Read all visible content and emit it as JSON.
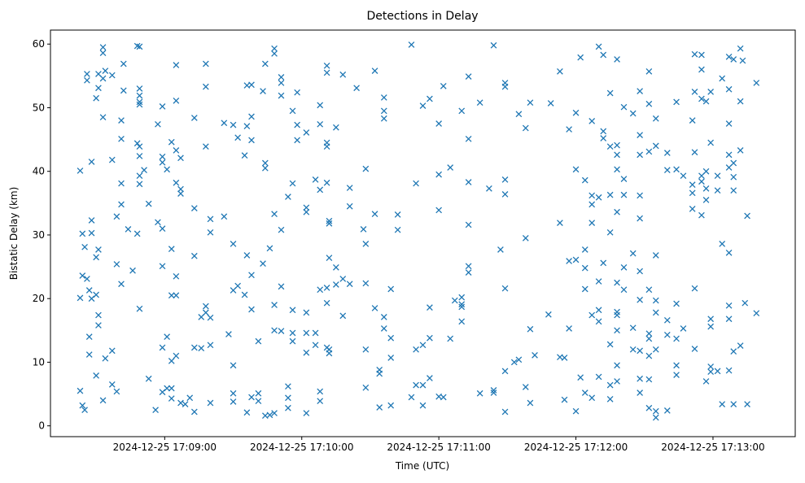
{
  "chart_data": {
    "type": "scatter",
    "title": "Detections in Delay",
    "xlabel": "Time (UTC)",
    "ylabel": "Bistatic Delay (km)",
    "x_unit": "seconds after 2024-12-25 17:08:00",
    "xlim": [
      10,
      336
    ],
    "ylim": [
      -1.7,
      62.2
    ],
    "x_ticks": [
      {
        "value": 60,
        "label": "2024-12-25 17:09:00"
      },
      {
        "value": 120,
        "label": "2024-12-25 17:10:00"
      },
      {
        "value": 180,
        "label": "2024-12-25 17:11:00"
      },
      {
        "value": 240,
        "label": "2024-12-25 17:12:00"
      },
      {
        "value": 300,
        "label": "2024-12-25 17:13:00"
      }
    ],
    "y_ticks": [
      {
        "value": 0,
        "label": "0"
      },
      {
        "value": 10,
        "label": "10"
      },
      {
        "value": 20,
        "label": "20"
      },
      {
        "value": 30,
        "label": "30"
      },
      {
        "value": 40,
        "label": "40"
      },
      {
        "value": 50,
        "label": "50"
      },
      {
        "value": 60,
        "label": "60"
      }
    ],
    "grid": false,
    "marker": "x",
    "color": "#1f77b4",
    "points_grouped_by_time": [
      [
        23,
        [
          40.1,
          20.1,
          5.5
        ]
      ],
      [
        24,
        [
          30.2,
          23.6,
          3.2
        ]
      ],
      [
        25,
        [
          28.1,
          2.5
        ]
      ],
      [
        26,
        [
          55.3,
          54.3,
          23.1
        ]
      ],
      [
        27,
        [
          14.0,
          11.2,
          21.3
        ]
      ],
      [
        28,
        [
          41.5,
          32.3,
          30.3,
          20.0
        ]
      ],
      [
        30,
        [
          51.5,
          26.5,
          20.6,
          7.9
        ]
      ],
      [
        31,
        [
          55.3,
          53.1,
          27.7,
          17.4,
          15.8
        ]
      ],
      [
        33,
        [
          59.5,
          58.6,
          54.6,
          48.5,
          4.0
        ]
      ],
      [
        34,
        [
          55.8,
          10.6
        ]
      ],
      [
        37,
        [
          55.1,
          41.8,
          11.8,
          6.5
        ]
      ],
      [
        39,
        [
          32.9,
          25.4,
          5.4
        ]
      ],
      [
        41,
        [
          48.0,
          45.1,
          38.1,
          34.8,
          22.3
        ]
      ],
      [
        42,
        [
          56.9,
          52.7
        ]
      ],
      [
        44,
        [
          30.9
        ]
      ],
      [
        46,
        [
          24.4
        ]
      ],
      [
        48,
        [
          59.7,
          44.4,
          30.2
        ]
      ],
      [
        49,
        [
          59.6,
          53.0,
          51.9,
          50.9,
          50.5,
          43.9,
          42.4,
          39.3,
          38.0,
          18.4
        ]
      ],
      [
        51,
        [
          40.2
        ]
      ],
      [
        53,
        [
          34.9,
          7.4
        ]
      ],
      [
        56,
        [
          2.5
        ]
      ],
      [
        57,
        [
          47.4,
          32.0
        ]
      ],
      [
        59,
        [
          50.2,
          42.3,
          41.4,
          31.0,
          25.1,
          12.3,
          5.3
        ]
      ],
      [
        61,
        [
          40.3,
          14.0,
          5.9
        ]
      ],
      [
        63,
        [
          44.6,
          27.8,
          20.5,
          10.2,
          5.9,
          4.3
        ]
      ],
      [
        65,
        [
          56.7,
          51.1,
          43.3,
          38.2,
          23.5,
          11.0,
          20.5
        ]
      ],
      [
        67,
        [
          42.1,
          37.2,
          36.5,
          3.6
        ]
      ],
      [
        69,
        [
          3.4
        ]
      ],
      [
        71,
        [
          4.4
        ]
      ],
      [
        73,
        [
          48.4,
          34.2,
          26.7,
          12.3,
          2.2
        ]
      ],
      [
        76,
        [
          17.1,
          12.2
        ]
      ],
      [
        78,
        [
          56.9,
          53.3,
          43.9,
          18.8,
          17.8
        ]
      ],
      [
        80,
        [
          32.5,
          30.4,
          12.7,
          3.6,
          17.0
        ]
      ],
      [
        86,
        [
          47.6,
          32.9
        ]
      ],
      [
        88,
        [
          14.4
        ]
      ],
      [
        90,
        [
          47.3,
          28.6,
          21.3,
          9.5,
          5.1,
          3.8
        ]
      ],
      [
        92,
        [
          45.3,
          22.0
        ]
      ],
      [
        95,
        [
          42.5,
          20.6
        ]
      ],
      [
        96,
        [
          53.5,
          47.1,
          26.8,
          2.1
        ]
      ],
      [
        98,
        [
          53.6,
          48.6,
          44.9,
          23.7,
          18.3,
          4.5
        ]
      ],
      [
        101,
        [
          13.3,
          3.9,
          5.1
        ]
      ],
      [
        103,
        [
          52.6,
          25.5
        ]
      ],
      [
        104,
        [
          56.9,
          41.3,
          40.5,
          1.6
        ]
      ],
      [
        106,
        [
          27.9,
          1.7
        ]
      ],
      [
        108,
        [
          59.3,
          58.5,
          33.3,
          19.0,
          15.0,
          2.0
        ]
      ],
      [
        111,
        [
          54.8,
          53.9,
          51.9,
          30.8,
          21.9,
          14.9
        ]
      ],
      [
        114,
        [
          36.0,
          4.4,
          6.2,
          2.8
        ]
      ],
      [
        116,
        [
          49.5,
          38.1,
          18.2,
          14.6,
          13.3
        ]
      ],
      [
        118,
        [
          52.4,
          47.3,
          44.9
        ]
      ],
      [
        122,
        [
          46.1,
          34.3,
          33.6,
          17.8,
          14.6,
          11.5,
          2.0
        ]
      ],
      [
        126,
        [
          38.7,
          14.6,
          12.7
        ]
      ],
      [
        128,
        [
          50.4,
          47.4,
          37.1,
          21.4,
          5.4,
          3.9
        ]
      ],
      [
        131,
        [
          56.6,
          55.5,
          44.5,
          43.9,
          38.2,
          21.7,
          19.3,
          12.3
        ]
      ],
      [
        132,
        [
          32.2,
          31.8,
          26.4,
          12.0,
          11.4
        ]
      ],
      [
        135,
        [
          46.9,
          24.9,
          22.2
        ]
      ],
      [
        138,
        [
          55.2,
          23.1,
          17.3
        ]
      ],
      [
        141,
        [
          37.4,
          22.3,
          34.5
        ]
      ],
      [
        144,
        [
          53.1
        ]
      ],
      [
        147,
        [
          30.9
        ]
      ],
      [
        148,
        [
          40.4,
          28.6,
          22.4,
          12.0,
          6.0
        ]
      ],
      [
        152,
        [
          55.8,
          33.3,
          18.5
        ]
      ],
      [
        154,
        [
          8.8,
          8.2,
          2.9
        ]
      ],
      [
        156,
        [
          48.3,
          51.6,
          49.5,
          15.3,
          17.1
        ]
      ],
      [
        159,
        [
          3.2,
          13.8,
          21.5,
          10.7
        ]
      ],
      [
        162,
        [
          33.2,
          30.8
        ]
      ],
      [
        168,
        [
          59.9,
          4.5
        ]
      ],
      [
        170,
        [
          38.1,
          12.0,
          6.4
        ]
      ],
      [
        173,
        [
          50.3,
          12.7,
          3.2,
          6.4
        ]
      ],
      [
        176,
        [
          51.4,
          18.6,
          7.5,
          13.8
        ]
      ],
      [
        180,
        [
          47.5,
          39.5,
          33.9,
          4.6
        ]
      ],
      [
        182,
        [
          53.4,
          4.5
        ]
      ],
      [
        185,
        [
          40.6,
          13.7
        ]
      ],
      [
        187,
        [
          19.7
        ]
      ],
      [
        190,
        [
          49.5,
          19.1,
          18.7,
          16.4,
          20.2
        ]
      ],
      [
        193,
        [
          54.9,
          31.6,
          25.1,
          24.1,
          45.1,
          38.3
        ]
      ],
      [
        198,
        [
          50.8,
          5.1
        ]
      ],
      [
        202,
        [
          37.3
        ]
      ],
      [
        204,
        [
          59.8,
          5.6,
          5.2
        ]
      ],
      [
        207,
        [
          27.7
        ]
      ],
      [
        209,
        [
          53.9,
          53.3,
          36.4,
          21.6,
          38.7,
          8.6,
          2.2
        ]
      ],
      [
        213,
        [
          10.0
        ]
      ],
      [
        215,
        [
          49.0,
          10.4
        ]
      ],
      [
        218,
        [
          46.8,
          29.5,
          6.1
        ]
      ],
      [
        220,
        [
          50.8,
          15.2,
          3.6
        ]
      ],
      [
        222,
        [
          11.1
        ]
      ],
      [
        228,
        [
          17.5
        ]
      ],
      [
        229,
        [
          50.7
        ]
      ],
      [
        233,
        [
          55.7,
          31.9,
          10.8
        ]
      ],
      [
        235,
        [
          10.7,
          4.1
        ]
      ],
      [
        237,
        [
          46.6,
          25.9,
          15.3
        ]
      ],
      [
        240,
        [
          40.3,
          26.1,
          2.3,
          49.2
        ]
      ],
      [
        242,
        [
          57.9,
          7.6
        ]
      ],
      [
        244,
        [
          38.6,
          27.7,
          21.5,
          5.2,
          24.8
        ]
      ],
      [
        247,
        [
          34.8,
          36.2,
          31.9,
          17.4,
          4.4,
          47.9
        ]
      ],
      [
        250,
        [
          59.6,
          35.9,
          18.2,
          22.7,
          16.4,
          7.7
        ]
      ],
      [
        252,
        [
          58.3,
          45.2,
          46.3,
          25.6
        ]
      ],
      [
        255,
        [
          52.3,
          43.9,
          36.3,
          12.8,
          6.4,
          4.2,
          30.4
        ]
      ],
      [
        258,
        [
          42.6,
          44.1,
          22.5,
          33.6,
          57.6,
          40.3,
          15.0,
          9.5,
          17.9,
          17.4,
          7.0
        ]
      ],
      [
        261,
        [
          50.1,
          38.8,
          36.3,
          24.9,
          21.4
        ]
      ],
      [
        265,
        [
          49.1,
          27.1,
          15.4,
          12.0
        ]
      ],
      [
        268,
        [
          52.6,
          45.7,
          42.6,
          36.2,
          32.6,
          24.3,
          19.8,
          11.8,
          7.4,
          5.2
        ]
      ],
      [
        272,
        [
          55.7,
          50.6,
          43.1,
          14.5,
          13.7,
          11.0,
          7.3,
          21.4,
          2.8
        ]
      ],
      [
        275,
        [
          48.3,
          44.0,
          26.8,
          19.7,
          17.8,
          2.3,
          1.3,
          12.0
        ]
      ],
      [
        280,
        [
          42.9,
          40.2,
          14.3,
          2.4,
          16.6
        ]
      ],
      [
        284,
        [
          50.9,
          40.3,
          19.2,
          13.7,
          9.5,
          8.0
        ]
      ],
      [
        287,
        [
          39.3,
          15.3
        ]
      ],
      [
        291,
        [
          48.0,
          36.6,
          34.1,
          37.9
        ]
      ],
      [
        292,
        [
          58.4,
          52.5,
          43.0,
          21.6,
          12.1
        ]
      ],
      [
        295,
        [
          58.3,
          56.0,
          51.4,
          39.3,
          38.4,
          33.1
        ]
      ],
      [
        297,
        [
          51.0,
          40.0,
          35.5,
          7.0,
          37.3
        ]
      ],
      [
        299,
        [
          44.5,
          52.5,
          16.8,
          15.6,
          9.3,
          8.5
        ]
      ],
      [
        302,
        [
          39.3,
          8.6,
          37.0
        ]
      ],
      [
        304,
        [
          54.6,
          28.6,
          3.4
        ]
      ],
      [
        307,
        [
          58.0,
          52.9,
          47.5,
          42.6,
          40.6,
          27.2,
          18.9,
          16.8,
          8.7
        ]
      ],
      [
        309,
        [
          57.6,
          41.3,
          39.1,
          37.0,
          11.7,
          3.4
        ]
      ],
      [
        312,
        [
          59.3,
          51.0,
          43.3,
          12.6
        ]
      ],
      [
        313,
        [
          57.4
        ]
      ],
      [
        314,
        [
          19.3
        ]
      ],
      [
        315,
        [
          33.0,
          3.4
        ]
      ],
      [
        319,
        [
          53.9,
          17.7
        ]
      ]
    ]
  }
}
